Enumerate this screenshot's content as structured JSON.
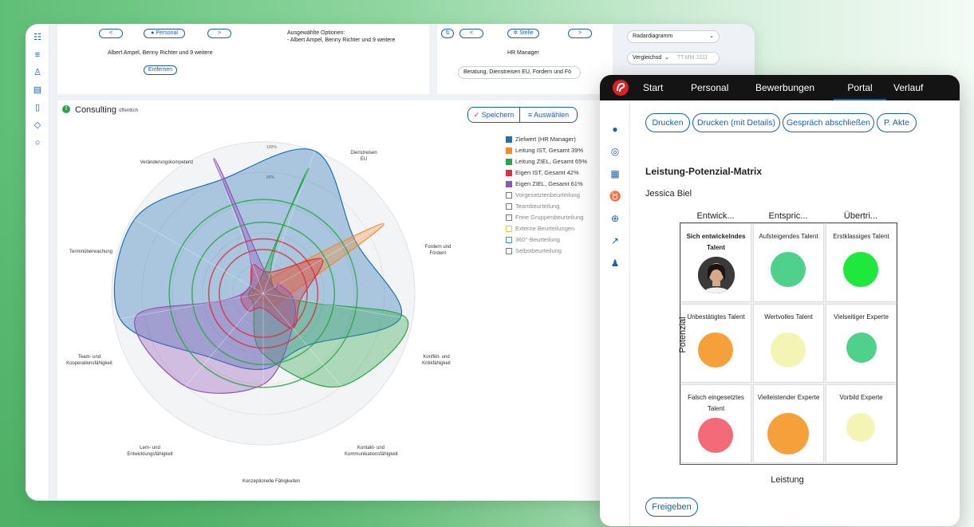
{
  "back_window": {
    "personal_pill": "Personal",
    "stelle_pill": "Stelle",
    "selected_people": "Albert Ampel, Benny Richter und 9 weitere",
    "remove_button": "Entfernen",
    "selected_options_title": "Ausgewählte Optionen:",
    "selected_options_value": "- Albert Ampel, Benny Richter und 9 weitere",
    "role": "HR Manager",
    "role_select": "Beratung, Dienstreisen EU, Fordern und Fö",
    "chart_type_select": "Radardiagramm",
    "compare_select": "Vergleichsd",
    "date_placeholder": "TT.MM.JJJJ",
    "chart_title": "Consulting",
    "chart_badge": "öffentlich",
    "save_button": "Speichern",
    "select_button": "Auswählen",
    "legend": [
      {
        "label": "Zielwert (HR Manager)",
        "color": "#1f6fb2",
        "filled": true
      },
      {
        "label": "Leitung IST, Gesamt 39%",
        "color": "#f28a2e",
        "filled": true
      },
      {
        "label": "Leitung ZIEL, Gesamt 65%",
        "color": "#2aa54a",
        "filled": true
      },
      {
        "label": "Eigen IST, Gesamt 42%",
        "color": "#d93040",
        "filled": true
      },
      {
        "label": "Eigen ZIEL, Gesamt 61%",
        "color": "#8e55b5",
        "filled": true
      },
      {
        "label": "Vorgesetztenbeurteilung",
        "color": "#777777",
        "filled": false
      },
      {
        "label": "Teambeurteilung",
        "color": "#777777",
        "filled": false
      },
      {
        "label": "Freie Gruppenbeurteilung",
        "color": "#777777",
        "filled": false
      },
      {
        "label": "Externe Beurteilungen",
        "color": "#c6d94a",
        "filled": false
      },
      {
        "label": "360°-Beurteilung",
        "color": "#2aa7c9",
        "filled": false
      },
      {
        "label": "Selbstbeurteilung",
        "color": "#777777",
        "filled": false
      }
    ],
    "radar_axes": {
      "veraenderung": "Veränderungskompetenz",
      "dienstreisen": "Dienstreisen EU",
      "fordern": "Fordern und Fördern",
      "konflikt": "Konflikt- und Kritikfähigkeit",
      "kontakt": "Kontakt- und Kommunikationsfähigkeit",
      "konzeptionell": "Konzeptionelle Fähigkeiten",
      "lern": "Lern- und Entwicklungsfähigkeit",
      "team": "Team- und Kooperationsfähigkeit",
      "termin": "Terminüberwachung"
    },
    "radar_ticks": [
      "100%",
      "80%"
    ]
  },
  "chart_data": {
    "type": "radar",
    "title": "Consulting",
    "axes": [
      "Veränderungskompetenz",
      "Dienstreisen EU",
      "Fordern und Fördern",
      "Konflikt- und Kritikfähigkeit",
      "Kontakt- und Kommunikationsfähigkeit",
      "Konzeptionelle Fähigkeiten",
      "Lern- und Entwicklungsfähigkeit",
      "Team- und Kooperationsfähigkeit",
      "Terminüberwachung"
    ],
    "series": [
      {
        "name": "Zielwert (HR Manager)",
        "color": "#1f6fb2",
        "values": [
          80,
          100,
          70,
          92,
          45,
          50,
          55,
          96,
          98
        ]
      },
      {
        "name": "Leitung IST, Gesamt 39%",
        "color": "#f28a2e",
        "values": [
          5,
          10,
          92,
          15,
          10,
          5,
          5,
          8,
          5
        ]
      },
      {
        "name": "Leitung ZIEL, Gesamt 65%",
        "color": "#2aa54a",
        "values": [
          8,
          88,
          8,
          96,
          80,
          40,
          10,
          10,
          8
        ]
      },
      {
        "name": "Eigen IST, Gesamt 42%",
        "color": "#d93040",
        "values": [
          20,
          15,
          45,
          25,
          30,
          10,
          15,
          15,
          10
        ]
      },
      {
        "name": "Eigen ZIEL, Gesamt 61%",
        "color": "#8e55b5",
        "values": [
          95,
          10,
          12,
          20,
          30,
          60,
          80,
          85,
          10
        ]
      }
    ],
    "rlim": [
      0,
      100
    ],
    "legend_position": "right"
  },
  "front_window": {
    "nav": [
      "Start",
      "Personal",
      "Bewerbungen",
      "Portal",
      "Verlauf"
    ],
    "active_nav": "Portal",
    "buttons": [
      "Drucken",
      "Drucken (mit Details)",
      "Gespräch abschließen",
      "P. Akte"
    ],
    "title": "Leistung-Potenzial-Matrix",
    "person": "Jessica Biel",
    "columns": [
      "Entwick...",
      "Entspric...",
      "Übertri..."
    ],
    "cells": [
      {
        "label": "Sich entwickelndes Talent",
        "color": "",
        "avatar": true
      },
      {
        "label": "Aufsteigendes Talent",
        "color": "#4fd18c"
      },
      {
        "label": "Erstklassiges Talent",
        "color": "#1ee83c"
      },
      {
        "label": "Unbestätigtes Talent",
        "color": "#f6a03c"
      },
      {
        "label": "Wertvolles Talent",
        "color": "#f4f5b4"
      },
      {
        "label": "Vielseitiger Experte",
        "color": "#4fd18c"
      },
      {
        "label": "Falsch eingesetztes Talent",
        "color": "#f36b78"
      },
      {
        "label": "Vielleistender Experte",
        "color": "#f6a03c"
      },
      {
        "label": "Vorbild Experte",
        "color": "#f4f5b4"
      }
    ],
    "y_axis": "Potenzial",
    "x_axis": "Leistung",
    "release_button": "Freigeben"
  }
}
